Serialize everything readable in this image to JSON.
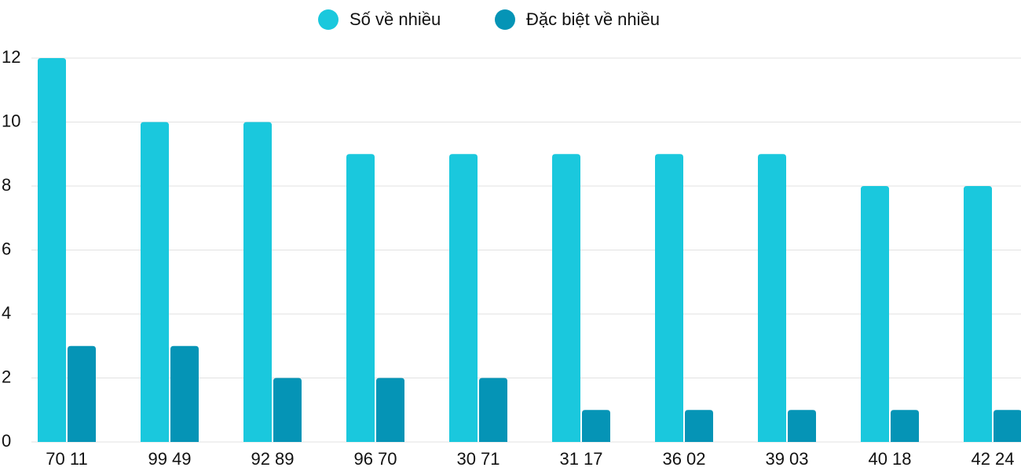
{
  "chart_data": {
    "type": "bar",
    "categories": [
      "70 11",
      "99 49",
      "92 89",
      "96 70",
      "30 71",
      "31 17",
      "36 02",
      "39 03",
      "40 18",
      "42 24"
    ],
    "series": [
      {
        "name": "Số về nhiều",
        "color": "#1ac8dd",
        "values": [
          12,
          10,
          10,
          9,
          9,
          9,
          9,
          9,
          8,
          8
        ]
      },
      {
        "name": "Đặc biệt về nhiều",
        "color": "#0594b6",
        "values": [
          3,
          3,
          2,
          2,
          2,
          1,
          1,
          1,
          1,
          1
        ]
      }
    ],
    "ylim": [
      0,
      12
    ],
    "yticks": [
      0,
      2,
      4,
      6,
      8,
      10,
      12
    ],
    "grid": true,
    "legend": "top"
  }
}
